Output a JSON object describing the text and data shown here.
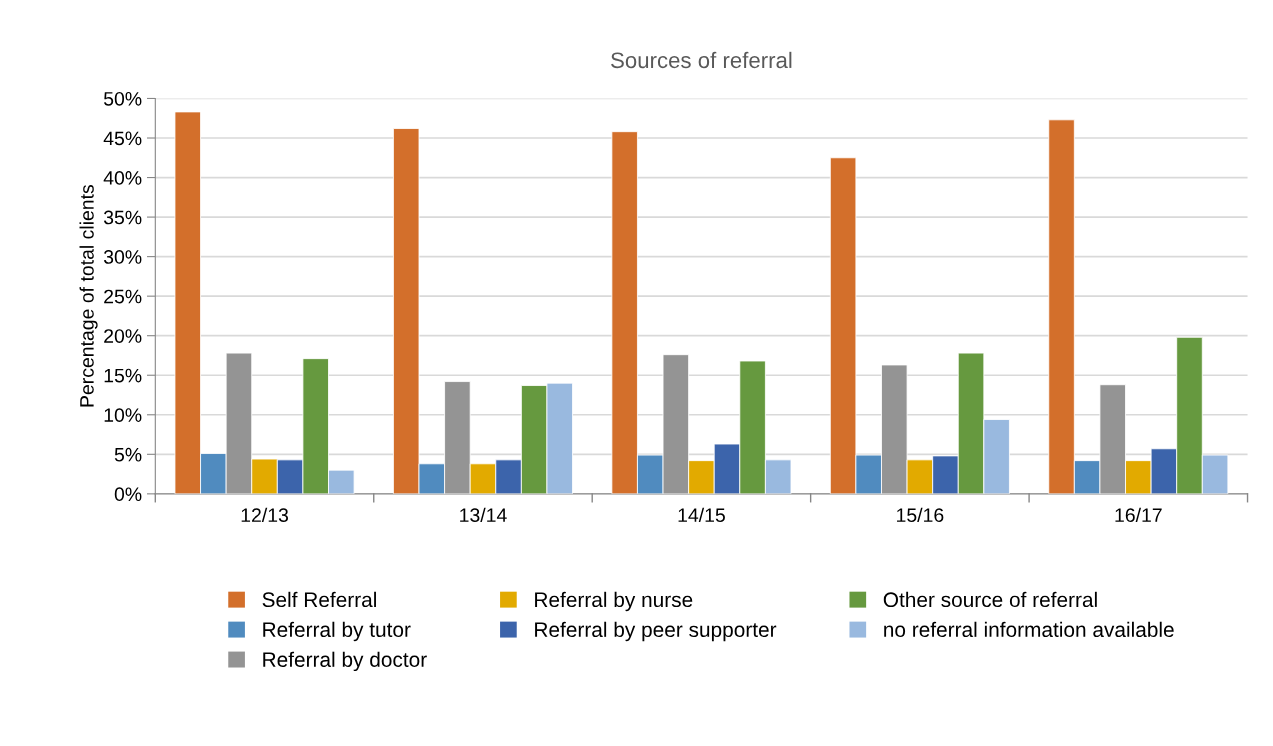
{
  "chart_data": {
    "type": "bar",
    "title": "Sources of referral",
    "ylabel": "Percentage of total clients",
    "categories": [
      "12/13",
      "13/14",
      "14/15",
      "15/16",
      "16/17"
    ],
    "series": [
      {
        "name": "Self Referral",
        "color": "#d36f2b",
        "values": [
          48.3,
          46.2,
          45.8,
          42.5,
          47.3
        ]
      },
      {
        "name": "Referral by tutor",
        "color": "#508bbf",
        "values": [
          5.1,
          3.8,
          4.9,
          4.9,
          4.2
        ]
      },
      {
        "name": "Referral by doctor",
        "color": "#949494",
        "values": [
          17.8,
          14.2,
          17.6,
          16.3,
          13.8
        ]
      },
      {
        "name": "Referral by nurse",
        "color": "#e2aa00",
        "values": [
          4.4,
          3.8,
          4.2,
          4.3,
          4.2
        ]
      },
      {
        "name": "Referral by peer supporter",
        "color": "#3c64ab",
        "values": [
          4.3,
          4.3,
          6.3,
          4.8,
          5.7
        ]
      },
      {
        "name": "Other source of referral",
        "color": "#66993f",
        "values": [
          17.1,
          13.7,
          16.8,
          17.8,
          19.8
        ]
      },
      {
        "name": "no referral information available",
        "color": "#99b9df",
        "values": [
          3.0,
          14.0,
          4.3,
          9.4,
          4.9
        ]
      }
    ],
    "ylim": [
      0,
      50
    ],
    "yticks": [
      {
        "value": 0,
        "label": "0%"
      },
      {
        "value": 5,
        "label": "5%"
      },
      {
        "value": 10,
        "label": "10%"
      },
      {
        "value": 15,
        "label": "15%"
      },
      {
        "value": 20,
        "label": "20%"
      },
      {
        "value": 25,
        "label": "25%"
      },
      {
        "value": 30,
        "label": "30%"
      },
      {
        "value": 35,
        "label": "35%"
      },
      {
        "value": 40,
        "label": "40%"
      },
      {
        "value": 45,
        "label": "45%"
      },
      {
        "value": 50,
        "label": "50%"
      }
    ],
    "grid": "y",
    "legend": "bottom"
  }
}
